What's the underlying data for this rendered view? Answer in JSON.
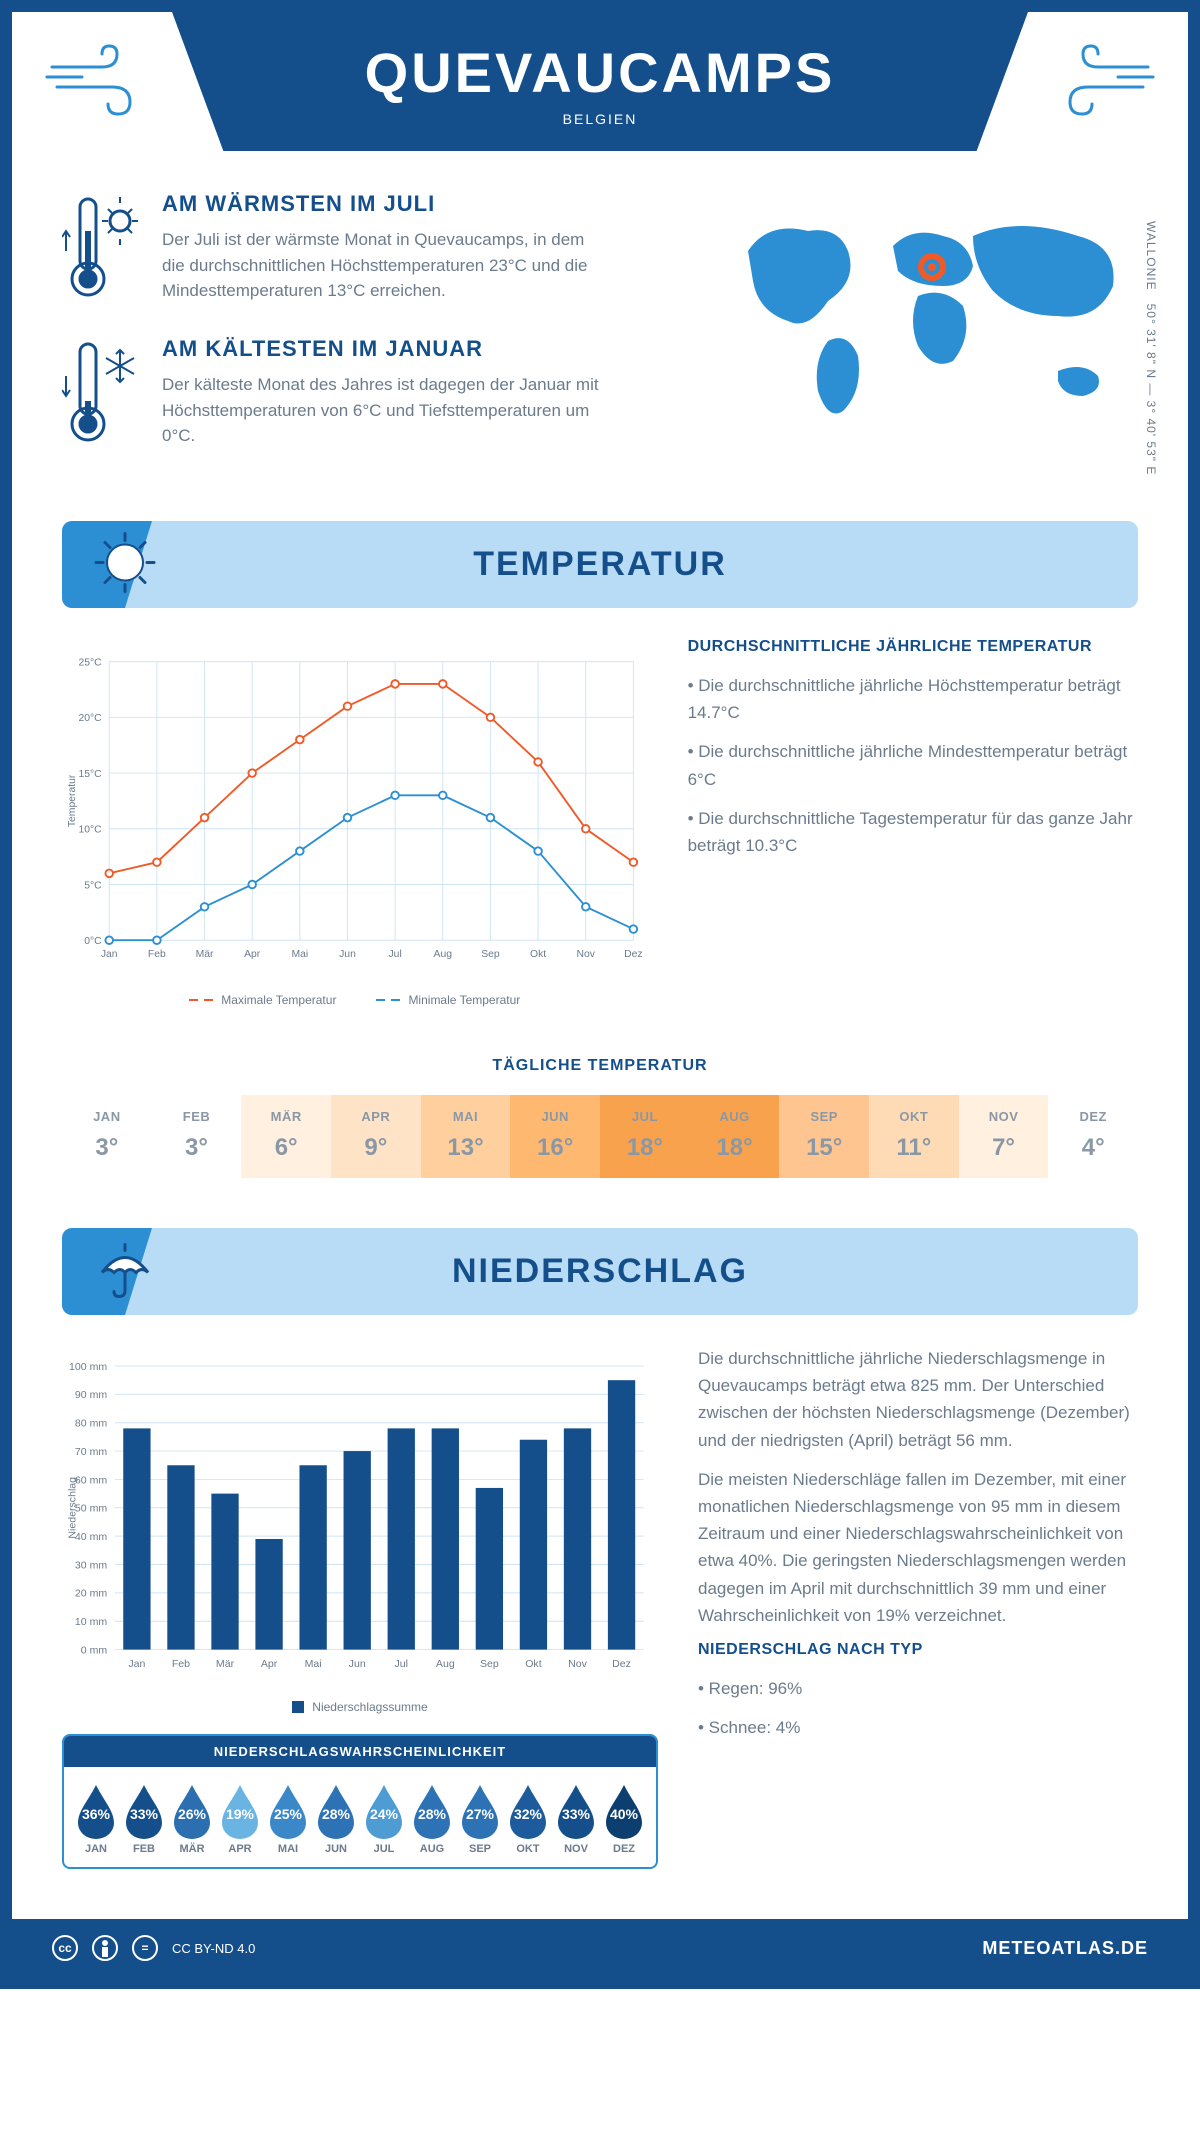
{
  "header": {
    "title": "QUEVAUCAMPS",
    "country": "BELGIEN"
  },
  "coords": {
    "region": "WALLONIE",
    "lat": "50° 31' 8\" N",
    "lon": "3° 40' 53\" E"
  },
  "warmest": {
    "title": "AM WÄRMSTEN IM JULI",
    "text": "Der Juli ist der wärmste Monat in Quevaucamps, in dem die durchschnittlichen Höchsttemperaturen 23°C und die Mindesttemperaturen 13°C erreichen."
  },
  "coldest": {
    "title": "AM KÄLTESTEN IM JANUAR",
    "text": "Der kälteste Monat des Jahres ist dagegen der Januar mit Höchsttemperaturen von 6°C und Tiefsttemperaturen um 0°C."
  },
  "section_temp": "TEMPERATUR",
  "section_precip": "NIEDERSCHLAG",
  "months": [
    "Jan",
    "Feb",
    "Mär",
    "Apr",
    "Mai",
    "Jun",
    "Jul",
    "Aug",
    "Sep",
    "Okt",
    "Nov",
    "Dez"
  ],
  "months_upper": [
    "JAN",
    "FEB",
    "MÄR",
    "APR",
    "MAI",
    "JUN",
    "JUL",
    "AUG",
    "SEP",
    "OKT",
    "NOV",
    "DEZ"
  ],
  "temp_chart": {
    "ylabel": "Temperatur",
    "ylim": [
      0,
      25
    ],
    "ytick_step": 5,
    "max_series": {
      "label": "Maximale Temperatur",
      "color": "#f05a28",
      "values": [
        6,
        7,
        11,
        15,
        18,
        21,
        23,
        23,
        20,
        16,
        10,
        7
      ]
    },
    "min_series": {
      "label": "Minimale Temperatur",
      "color": "#2c8fd4",
      "values": [
        0,
        0,
        3,
        5,
        8,
        11,
        13,
        13,
        11,
        8,
        3,
        1
      ]
    },
    "grid_color": "#cfe4f3",
    "line_width": 2,
    "marker_size": 4
  },
  "temp_text": {
    "heading": "DURCHSCHNITTLICHE JÄHRLICHE TEMPERATUR",
    "b1": "• Die durchschnittliche jährliche Höchsttemperatur beträgt 14.7°C",
    "b2": "• Die durchschnittliche jährliche Mindesttemperatur beträgt 6°C",
    "b3": "• Die durchschnittliche Tagestemperatur für das ganze Jahr beträgt 10.3°C"
  },
  "daily_temp_title": "TÄGLICHE TEMPERATUR",
  "daily_temp": {
    "values": [
      "3°",
      "3°",
      "6°",
      "9°",
      "13°",
      "16°",
      "18°",
      "18°",
      "15°",
      "11°",
      "7°",
      "4°"
    ],
    "colors": [
      "#ffffff",
      "#ffffff",
      "#fff0e0",
      "#ffe3c6",
      "#ffcf9e",
      "#ffb870",
      "#f9a24e",
      "#f9a24e",
      "#ffc590",
      "#ffdbb5",
      "#fff0e0",
      "#ffffff"
    ]
  },
  "precip_chart": {
    "ylabel": "Niederschlag",
    "ylim": [
      0,
      100
    ],
    "ytick_step": 10,
    "values": [
      78,
      65,
      55,
      39,
      65,
      70,
      78,
      78,
      57,
      74,
      78,
      95
    ],
    "bar_color": "#144f8c",
    "legend": "Niederschlagssumme"
  },
  "precip_text": {
    "p1": "Die durchschnittliche jährliche Niederschlagsmenge in Quevaucamps beträgt etwa 825 mm. Der Unterschied zwischen der höchsten Niederschlagsmenge (Dezember) und der niedrigsten (April) beträgt 56 mm.",
    "p2": "Die meisten Niederschläge fallen im Dezember, mit einer monatlichen Niederschlagsmenge von 95 mm in diesem Zeitraum und einer Niederschlagswahrscheinlichkeit von etwa 40%. Die geringsten Niederschlagsmengen werden dagegen im April mit durchschnittlich 39 mm und einer Wahrscheinlichkeit von 19% verzeichnet.",
    "type_head": "NIEDERSCHLAG NACH TYP",
    "type1": "• Regen: 96%",
    "type2": "• Schnee: 4%"
  },
  "precip_prob": {
    "title": "NIEDERSCHLAGSWAHRSCHEINLICHKEIT",
    "values": [
      "36%",
      "33%",
      "26%",
      "19%",
      "25%",
      "28%",
      "24%",
      "28%",
      "27%",
      "32%",
      "33%",
      "40%"
    ],
    "colors": [
      "#144f8c",
      "#144f8c",
      "#2c6fb0",
      "#6ab4e4",
      "#3b88c9",
      "#2c72b5",
      "#4d9cd4",
      "#2c72b5",
      "#2c72b5",
      "#1d5b9c",
      "#144f8c",
      "#0d3e70"
    ]
  },
  "footer": {
    "license": "CC BY-ND 4.0",
    "site": "METEOATLAS.DE"
  }
}
